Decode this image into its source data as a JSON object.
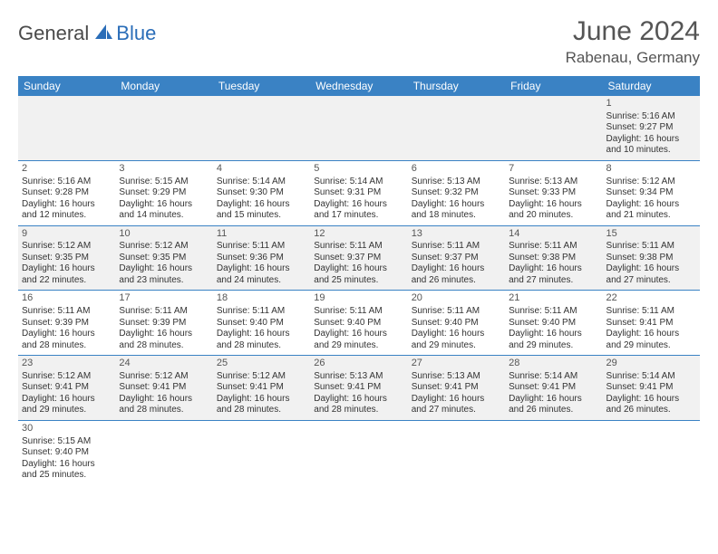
{
  "logo": {
    "part1": "General",
    "part2": "Blue"
  },
  "title": "June 2024",
  "location": "Rabenau, Germany",
  "colors": {
    "header_bg": "#3a82c4",
    "header_fg": "#ffffff",
    "alt_row": "#f1f1f1",
    "border": "#3a82c4",
    "text": "#333333",
    "title_text": "#555555",
    "logo_gray": "#4a4a4a",
    "logo_blue": "#2a6db8"
  },
  "day_headers": [
    "Sunday",
    "Monday",
    "Tuesday",
    "Wednesday",
    "Thursday",
    "Friday",
    "Saturday"
  ],
  "weeks": [
    [
      null,
      null,
      null,
      null,
      null,
      null,
      {
        "n": "1",
        "sr": "Sunrise: 5:16 AM",
        "ss": "Sunset: 9:27 PM",
        "dl": "Daylight: 16 hours and 10 minutes."
      }
    ],
    [
      {
        "n": "2",
        "sr": "Sunrise: 5:16 AM",
        "ss": "Sunset: 9:28 PM",
        "dl": "Daylight: 16 hours and 12 minutes."
      },
      {
        "n": "3",
        "sr": "Sunrise: 5:15 AM",
        "ss": "Sunset: 9:29 PM",
        "dl": "Daylight: 16 hours and 14 minutes."
      },
      {
        "n": "4",
        "sr": "Sunrise: 5:14 AM",
        "ss": "Sunset: 9:30 PM",
        "dl": "Daylight: 16 hours and 15 minutes."
      },
      {
        "n": "5",
        "sr": "Sunrise: 5:14 AM",
        "ss": "Sunset: 9:31 PM",
        "dl": "Daylight: 16 hours and 17 minutes."
      },
      {
        "n": "6",
        "sr": "Sunrise: 5:13 AM",
        "ss": "Sunset: 9:32 PM",
        "dl": "Daylight: 16 hours and 18 minutes."
      },
      {
        "n": "7",
        "sr": "Sunrise: 5:13 AM",
        "ss": "Sunset: 9:33 PM",
        "dl": "Daylight: 16 hours and 20 minutes."
      },
      {
        "n": "8",
        "sr": "Sunrise: 5:12 AM",
        "ss": "Sunset: 9:34 PM",
        "dl": "Daylight: 16 hours and 21 minutes."
      }
    ],
    [
      {
        "n": "9",
        "sr": "Sunrise: 5:12 AM",
        "ss": "Sunset: 9:35 PM",
        "dl": "Daylight: 16 hours and 22 minutes."
      },
      {
        "n": "10",
        "sr": "Sunrise: 5:12 AM",
        "ss": "Sunset: 9:35 PM",
        "dl": "Daylight: 16 hours and 23 minutes."
      },
      {
        "n": "11",
        "sr": "Sunrise: 5:11 AM",
        "ss": "Sunset: 9:36 PM",
        "dl": "Daylight: 16 hours and 24 minutes."
      },
      {
        "n": "12",
        "sr": "Sunrise: 5:11 AM",
        "ss": "Sunset: 9:37 PM",
        "dl": "Daylight: 16 hours and 25 minutes."
      },
      {
        "n": "13",
        "sr": "Sunrise: 5:11 AM",
        "ss": "Sunset: 9:37 PM",
        "dl": "Daylight: 16 hours and 26 minutes."
      },
      {
        "n": "14",
        "sr": "Sunrise: 5:11 AM",
        "ss": "Sunset: 9:38 PM",
        "dl": "Daylight: 16 hours and 27 minutes."
      },
      {
        "n": "15",
        "sr": "Sunrise: 5:11 AM",
        "ss": "Sunset: 9:38 PM",
        "dl": "Daylight: 16 hours and 27 minutes."
      }
    ],
    [
      {
        "n": "16",
        "sr": "Sunrise: 5:11 AM",
        "ss": "Sunset: 9:39 PM",
        "dl": "Daylight: 16 hours and 28 minutes."
      },
      {
        "n": "17",
        "sr": "Sunrise: 5:11 AM",
        "ss": "Sunset: 9:39 PM",
        "dl": "Daylight: 16 hours and 28 minutes."
      },
      {
        "n": "18",
        "sr": "Sunrise: 5:11 AM",
        "ss": "Sunset: 9:40 PM",
        "dl": "Daylight: 16 hours and 28 minutes."
      },
      {
        "n": "19",
        "sr": "Sunrise: 5:11 AM",
        "ss": "Sunset: 9:40 PM",
        "dl": "Daylight: 16 hours and 29 minutes."
      },
      {
        "n": "20",
        "sr": "Sunrise: 5:11 AM",
        "ss": "Sunset: 9:40 PM",
        "dl": "Daylight: 16 hours and 29 minutes."
      },
      {
        "n": "21",
        "sr": "Sunrise: 5:11 AM",
        "ss": "Sunset: 9:40 PM",
        "dl": "Daylight: 16 hours and 29 minutes."
      },
      {
        "n": "22",
        "sr": "Sunrise: 5:11 AM",
        "ss": "Sunset: 9:41 PM",
        "dl": "Daylight: 16 hours and 29 minutes."
      }
    ],
    [
      {
        "n": "23",
        "sr": "Sunrise: 5:12 AM",
        "ss": "Sunset: 9:41 PM",
        "dl": "Daylight: 16 hours and 29 minutes."
      },
      {
        "n": "24",
        "sr": "Sunrise: 5:12 AM",
        "ss": "Sunset: 9:41 PM",
        "dl": "Daylight: 16 hours and 28 minutes."
      },
      {
        "n": "25",
        "sr": "Sunrise: 5:12 AM",
        "ss": "Sunset: 9:41 PM",
        "dl": "Daylight: 16 hours and 28 minutes."
      },
      {
        "n": "26",
        "sr": "Sunrise: 5:13 AM",
        "ss": "Sunset: 9:41 PM",
        "dl": "Daylight: 16 hours and 28 minutes."
      },
      {
        "n": "27",
        "sr": "Sunrise: 5:13 AM",
        "ss": "Sunset: 9:41 PM",
        "dl": "Daylight: 16 hours and 27 minutes."
      },
      {
        "n": "28",
        "sr": "Sunrise: 5:14 AM",
        "ss": "Sunset: 9:41 PM",
        "dl": "Daylight: 16 hours and 26 minutes."
      },
      {
        "n": "29",
        "sr": "Sunrise: 5:14 AM",
        "ss": "Sunset: 9:41 PM",
        "dl": "Daylight: 16 hours and 26 minutes."
      }
    ],
    [
      {
        "n": "30",
        "sr": "Sunrise: 5:15 AM",
        "ss": "Sunset: 9:40 PM",
        "dl": "Daylight: 16 hours and 25 minutes."
      },
      null,
      null,
      null,
      null,
      null,
      null
    ]
  ]
}
